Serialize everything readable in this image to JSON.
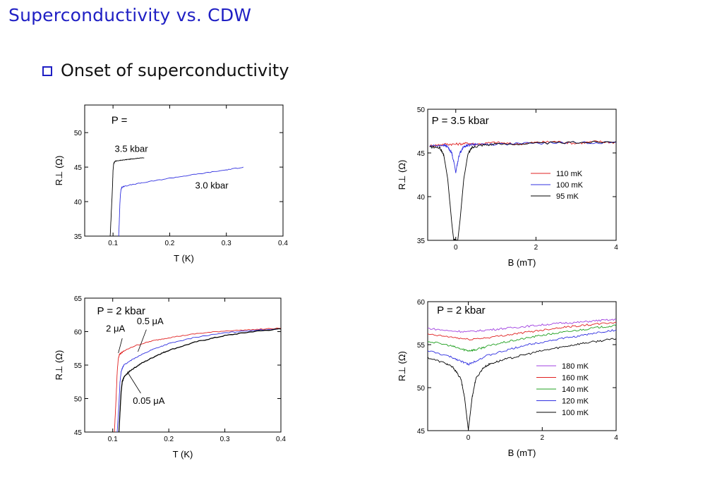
{
  "slide": {
    "title": "Superconductivity vs. CDW",
    "bullet": "Onset of superconductivity"
  },
  "colors": {
    "title": "#1f1fc4",
    "red": "#e02020",
    "blue": "#3030e0",
    "green": "#20a020",
    "purple": "#a040e0",
    "black": "#000000"
  },
  "chart_data": [
    {
      "type": "line",
      "xlabel": "T (K)",
      "ylabel": "R⊥ (Ω)",
      "xlim": [
        0.05,
        0.4
      ],
      "ylim": [
        35,
        54
      ],
      "xticks": [
        "0.1",
        "0.2",
        "0.3",
        "0.4"
      ],
      "yticks": [
        "35",
        "40",
        "45",
        "50"
      ],
      "annotations": [
        {
          "text": "P  =",
          "x": 0.097,
          "y": 51.3
        },
        {
          "text": "3.5 kbar",
          "x": 0.103,
          "y": 47.2
        },
        {
          "text": "3.0 kbar",
          "x": 0.245,
          "y": 41.9
        }
      ],
      "series": [
        {
          "name": "3.5 kbar",
          "color": "#000000",
          "x": [
            0.095,
            0.097,
            0.099,
            0.1,
            0.101,
            0.102,
            0.103,
            0.104,
            0.107,
            0.115,
            0.125,
            0.135,
            0.145,
            0.155
          ],
          "y": [
            35.0,
            38.5,
            42.0,
            44.5,
            45.4,
            45.7,
            45.8,
            45.85,
            45.9,
            46.0,
            46.1,
            46.2,
            46.3,
            46.35
          ]
        },
        {
          "name": "3.0 kbar",
          "color": "#3030e0",
          "x": [
            0.11,
            0.111,
            0.112,
            0.113,
            0.114,
            0.115,
            0.116,
            0.12,
            0.15,
            0.2,
            0.25,
            0.3,
            0.33
          ],
          "y": [
            35.0,
            37.0,
            39.5,
            41.0,
            41.7,
            42.0,
            42.1,
            42.25,
            42.7,
            43.4,
            44.0,
            44.6,
            45.0
          ]
        }
      ]
    },
    {
      "type": "line",
      "xlabel": "B (mT)",
      "ylabel": "R⊥ (Ω)",
      "xlim": [
        -0.7,
        4
      ],
      "ylim": [
        35,
        50
      ],
      "xticks": [
        "0",
        "2",
        "4"
      ],
      "yticks": [
        "35",
        "40",
        "45",
        "50"
      ],
      "annotations": [
        {
          "text": "P = 3.5 kbar",
          "x": -0.6,
          "y": 48.3
        }
      ],
      "series": [
        {
          "name": "110 mK",
          "color": "#e02020",
          "x": [
            -0.65,
            -0.3,
            0.0,
            0.3,
            0.5,
            1.0,
            1.5,
            2.0,
            2.5,
            3.0,
            3.5,
            4.0
          ],
          "y": [
            45.8,
            46.0,
            46.0,
            46.1,
            46.0,
            46.2,
            46.0,
            46.2,
            46.3,
            46.1,
            46.3,
            46.2
          ]
        },
        {
          "name": "100 mK",
          "color": "#3030e0",
          "x": [
            -0.65,
            -0.3,
            -0.2,
            -0.1,
            -0.03,
            0.0,
            0.03,
            0.1,
            0.2,
            0.3,
            0.5,
            1.0,
            2.0,
            3.0,
            4.0
          ],
          "y": [
            45.8,
            45.9,
            45.7,
            45.0,
            43.6,
            42.7,
            43.6,
            45.0,
            45.7,
            45.9,
            46.0,
            46.0,
            46.1,
            46.2,
            46.2
          ]
        },
        {
          "name": "95 mK",
          "color": "#000000",
          "x": [
            -0.65,
            -0.4,
            -0.3,
            -0.2,
            -0.1,
            -0.05,
            0.05,
            0.1,
            0.2,
            0.3,
            0.4,
            0.6,
            1.0,
            2.0,
            3.0,
            4.0
          ],
          "y": [
            45.7,
            45.6,
            44.8,
            42.0,
            37.0,
            35.0,
            35.0,
            37.0,
            42.0,
            44.8,
            45.6,
            45.9,
            46.0,
            46.1,
            46.2,
            46.3
          ]
        }
      ]
    },
    {
      "type": "line",
      "xlabel": "T (K)",
      "ylabel": "R⊥ (Ω)",
      "xlim": [
        0.05,
        0.4
      ],
      "ylim": [
        45,
        65
      ],
      "xticks": [
        "0.1",
        "0.2",
        "0.3",
        "0.4"
      ],
      "yticks": [
        "45",
        "50",
        "55",
        "60",
        "65"
      ],
      "annotations": [
        {
          "text": "P = 2 kbar",
          "x": 0.072,
          "y": 62.6
        },
        {
          "text": "2 μA",
          "x": 0.088,
          "y": 60.0
        },
        {
          "text": "0.5 μA",
          "x": 0.143,
          "y": 61.1
        },
        {
          "text": "0.05 μA",
          "x": 0.136,
          "y": 49.2
        }
      ],
      "series": [
        {
          "name": "2 μA",
          "color": "#e02020",
          "x": [
            0.103,
            0.106,
            0.108,
            0.11,
            0.112,
            0.115,
            0.12,
            0.14,
            0.17,
            0.2,
            0.25,
            0.3,
            0.35,
            0.4
          ],
          "y": [
            45.0,
            50.0,
            54.0,
            56.0,
            56.6,
            56.8,
            57.1,
            57.9,
            58.6,
            59.1,
            59.7,
            60.1,
            60.3,
            60.5
          ]
        },
        {
          "name": "0.5 μA",
          "color": "#3030e0",
          "x": [
            0.108,
            0.111,
            0.113,
            0.115,
            0.118,
            0.12,
            0.14,
            0.17,
            0.2,
            0.25,
            0.3,
            0.35,
            0.4
          ],
          "y": [
            45.0,
            49.0,
            52.5,
            54.0,
            54.7,
            55.0,
            56.1,
            57.3,
            58.2,
            59.2,
            59.8,
            60.2,
            60.4
          ]
        },
        {
          "name": "0.05 μA",
          "color": "#000000",
          "x": [
            0.111,
            0.113,
            0.115,
            0.117,
            0.12,
            0.13,
            0.15,
            0.18,
            0.2,
            0.25,
            0.3,
            0.35,
            0.4
          ],
          "y": [
            45.0,
            48.0,
            51.0,
            52.5,
            53.2,
            54.1,
            55.2,
            56.5,
            57.2,
            58.5,
            59.4,
            60.0,
            60.4
          ]
        }
      ]
    },
    {
      "type": "line",
      "xlabel": "B (mT)",
      "ylabel": "R⊥ (Ω)",
      "xlim": [
        -1.1,
        4
      ],
      "ylim": [
        45,
        60
      ],
      "xticks": [
        "0",
        "2",
        "4"
      ],
      "yticks": [
        "45",
        "50",
        "55",
        "60"
      ],
      "annotations": [
        {
          "text": "P = 2 kbar",
          "x": -0.85,
          "y": 58.6
        }
      ],
      "series": [
        {
          "name": "180 mK",
          "color": "#a040e0",
          "x": [
            -1.1,
            -0.5,
            0.0,
            0.5,
            1.0,
            1.5,
            2.0,
            2.5,
            3.0,
            3.5,
            4.0
          ],
          "y": [
            56.9,
            56.6,
            56.5,
            56.7,
            56.9,
            57.1,
            57.3,
            57.5,
            57.6,
            57.8,
            57.9
          ]
        },
        {
          "name": "160 mK",
          "color": "#e02020",
          "x": [
            -1.1,
            -0.5,
            0.0,
            0.5,
            1.0,
            1.5,
            2.0,
            2.5,
            3.0,
            3.5,
            4.0
          ],
          "y": [
            56.2,
            55.9,
            55.6,
            55.8,
            56.1,
            56.4,
            56.7,
            57.0,
            57.2,
            57.4,
            57.6
          ]
        },
        {
          "name": "140 mK",
          "color": "#20a020",
          "x": [
            -1.1,
            -0.5,
            -0.2,
            0.0,
            0.2,
            0.5,
            1.0,
            1.5,
            2.0,
            2.5,
            3.0,
            3.5,
            4.0
          ],
          "y": [
            55.4,
            54.9,
            54.5,
            54.3,
            54.4,
            54.8,
            55.3,
            55.7,
            56.1,
            56.4,
            56.7,
            57.0,
            57.2
          ]
        },
        {
          "name": "120 mK",
          "color": "#3030e0",
          "x": [
            -1.1,
            -0.5,
            -0.2,
            0.0,
            0.2,
            0.5,
            1.0,
            1.5,
            2.0,
            2.5,
            3.0,
            3.5,
            4.0
          ],
          "y": [
            54.3,
            53.6,
            53.1,
            52.7,
            53.1,
            53.7,
            54.3,
            54.9,
            55.3,
            55.7,
            56.0,
            56.4,
            56.7
          ]
        },
        {
          "name": "100 mK",
          "color": "#000000",
          "x": [
            -1.1,
            -0.6,
            -0.4,
            -0.2,
            -0.1,
            -0.05,
            0.0,
            0.05,
            0.1,
            0.2,
            0.4,
            0.6,
            1.0,
            1.5,
            2.0,
            2.5,
            3.0,
            3.5,
            4.0
          ],
          "y": [
            53.5,
            52.8,
            52.3,
            51.0,
            48.8,
            46.9,
            45.1,
            46.9,
            48.8,
            51.0,
            52.3,
            52.8,
            53.3,
            53.8,
            54.3,
            54.7,
            55.1,
            55.4,
            55.7
          ]
        }
      ]
    }
  ]
}
